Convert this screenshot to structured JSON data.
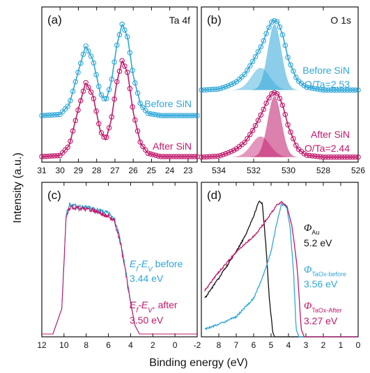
{
  "figure": {
    "ylabel": "Intensity (a.u.)",
    "xlabel": "Binding energy (eV)"
  },
  "colors": {
    "blue": "#2ea6d8",
    "magenta": "#c0186a",
    "black": "#111111"
  },
  "chart_data": [
    {
      "panel": "a",
      "type": "scatter",
      "label": "(a)",
      "title": "Ta 4f",
      "xlim": [
        31,
        22.5
      ],
      "x_ticks": [
        "31",
        "30",
        "29",
        "28",
        "27",
        "26",
        "25",
        "24",
        "23"
      ],
      "series": [
        {
          "name": "Before SiN",
          "color": "#2ea6d8",
          "x": [
            31,
            30,
            29.5,
            29,
            28.6,
            28.2,
            27.8,
            27.5,
            27.2,
            26.9,
            26.6,
            26.3,
            26.0,
            25.6,
            25.2,
            24.5,
            23.5,
            22.6
          ],
          "y": [
            0.42,
            0.43,
            0.52,
            0.82,
            1.05,
            0.92,
            0.62,
            0.55,
            0.72,
            1.05,
            1.25,
            1.12,
            0.78,
            0.52,
            0.44,
            0.42,
            0.42,
            0.42
          ]
        },
        {
          "name": "After SiN",
          "color": "#c0186a",
          "x": [
            31,
            30,
            29.5,
            29,
            28.6,
            28.2,
            27.8,
            27.5,
            27.2,
            26.9,
            26.6,
            26.3,
            26.0,
            25.6,
            25.2,
            24.5,
            23.5,
            22.6
          ],
          "y": [
            0.05,
            0.06,
            0.15,
            0.48,
            0.72,
            0.6,
            0.28,
            0.2,
            0.38,
            0.72,
            0.92,
            0.8,
            0.45,
            0.17,
            0.08,
            0.05,
            0.05,
            0.05
          ]
        }
      ]
    },
    {
      "panel": "b",
      "type": "scatter",
      "label": "(b)",
      "title": "O 1s",
      "xlim": [
        535,
        526
      ],
      "x_ticks": [
        "534",
        "532",
        "530",
        "528",
        "526"
      ],
      "series": [
        {
          "name": "Before SiN",
          "color": "#2ea6d8",
          "x": [
            535,
            534,
            533.5,
            533,
            532.5,
            532,
            531.5,
            531.2,
            530.9,
            530.6,
            530.3,
            530,
            529.5,
            529,
            528,
            527,
            526
          ],
          "y": [
            0.72,
            0.73,
            0.76,
            0.8,
            0.88,
            1.02,
            1.18,
            1.32,
            1.42,
            1.4,
            1.25,
            1.02,
            0.82,
            0.75,
            0.72,
            0.72,
            0.72
          ]
        },
        {
          "name": "After SiN",
          "color": "#c0186a",
          "x": [
            535,
            534,
            533.5,
            533,
            532.5,
            532,
            531.5,
            531.2,
            530.9,
            530.6,
            530.3,
            530,
            529.5,
            529,
            528,
            527,
            526
          ],
          "y": [
            0.05,
            0.06,
            0.09,
            0.13,
            0.2,
            0.33,
            0.5,
            0.62,
            0.7,
            0.68,
            0.55,
            0.35,
            0.14,
            0.07,
            0.05,
            0.05,
            0.05
          ]
        }
      ],
      "annotations": [
        {
          "text": "Before SiN",
          "color": "#2ea6d8"
        },
        {
          "text": "O/Ta=2.53",
          "color": "#2ea6d8"
        },
        {
          "text": "After SiN",
          "color": "#c0186a"
        },
        {
          "text": "O/Ta=2.44",
          "color": "#c0186a"
        }
      ]
    },
    {
      "panel": "c",
      "type": "line",
      "label": "(c)",
      "xlim": [
        12,
        -2
      ],
      "x_ticks": [
        "12",
        "10",
        "8",
        "6",
        "4",
        "2",
        "0",
        "-2"
      ],
      "series": [
        {
          "name": "before",
          "color": "#2ea6d8",
          "x": [
            12,
            11,
            10.2,
            9.8,
            9.5,
            9,
            8,
            7,
            6,
            5.5,
            5,
            4.5,
            4,
            3.6,
            3.2,
            2.5,
            0,
            -2
          ],
          "y": [
            0.02,
            0.02,
            0.2,
            0.88,
            0.94,
            0.93,
            0.92,
            0.9,
            0.88,
            0.85,
            0.72,
            0.5,
            0.25,
            0.08,
            0.02,
            0.02,
            0.02,
            0.02
          ]
        },
        {
          "name": "after",
          "color": "#c0186a",
          "x": [
            12,
            11,
            10.2,
            9.8,
            9.5,
            9,
            8,
            7,
            6,
            5.5,
            5,
            4.5,
            4,
            3.6,
            3.2,
            2.5,
            0,
            -2
          ],
          "y": [
            0.02,
            0.02,
            0.2,
            0.86,
            0.92,
            0.92,
            0.91,
            0.89,
            0.86,
            0.83,
            0.7,
            0.48,
            0.24,
            0.08,
            0.02,
            0.02,
            0.02,
            0.02
          ]
        }
      ],
      "annotations": [
        {
          "text_parts": [
            "E",
            "f",
            "-E",
            "V",
            " before"
          ],
          "value": "3.44 eV",
          "color": "#2ea6d8"
        },
        {
          "text_parts": [
            "E",
            "f",
            "-E",
            "V",
            ", after"
          ],
          "value": "3.50 eV",
          "color": "#c0186a"
        }
      ]
    },
    {
      "panel": "d",
      "type": "line",
      "label": "(d)",
      "xlim": [
        9,
        0
      ],
      "x_ticks": [
        "8",
        "7",
        "6",
        "5",
        "4",
        "3",
        "2",
        "1",
        "0"
      ],
      "series": [
        {
          "name": "Au",
          "color": "#111111",
          "x": [
            8.8,
            8,
            7,
            6.5,
            6,
            5.7,
            5.5,
            5.3,
            5.1,
            4.9,
            4.8,
            4.5,
            0
          ],
          "y": [
            0.25,
            0.38,
            0.55,
            0.65,
            0.78,
            0.88,
            0.86,
            0.6,
            0.25,
            0.03,
            0.0,
            0.0,
            0.0
          ]
        },
        {
          "name": "TaOx-before",
          "color": "#2ea6d8",
          "x": [
            8.8,
            8,
            7,
            6,
            5.5,
            5,
            4.7,
            4.4,
            4.1,
            3.9,
            3.7,
            3.56,
            3.4,
            0
          ],
          "y": [
            0.05,
            0.08,
            0.13,
            0.25,
            0.38,
            0.55,
            0.72,
            0.86,
            0.84,
            0.7,
            0.4,
            0.05,
            0.0,
            0.0
          ]
        },
        {
          "name": "TaOx-After",
          "color": "#c0186a",
          "x": [
            8.8,
            8,
            7,
            6,
            5.5,
            5,
            4.7,
            4.4,
            4.1,
            3.8,
            3.5,
            3.27,
            3.1,
            0
          ],
          "y": [
            0.3,
            0.42,
            0.55,
            0.65,
            0.72,
            0.8,
            0.85,
            0.87,
            0.85,
            0.72,
            0.45,
            0.05,
            0.0,
            0.0
          ]
        }
      ],
      "annotations": [
        {
          "symbol": "Φ",
          "sub": "Au",
          "value": "5.2 eV",
          "color": "#111111"
        },
        {
          "symbol": "Φ",
          "sub": "TaOx-before",
          "value": "3.56 eV",
          "color": "#2ea6d8"
        },
        {
          "symbol": "Φ",
          "sub": "TaOx-After",
          "value": "3.27 eV",
          "color": "#c0186a"
        }
      ]
    }
  ]
}
